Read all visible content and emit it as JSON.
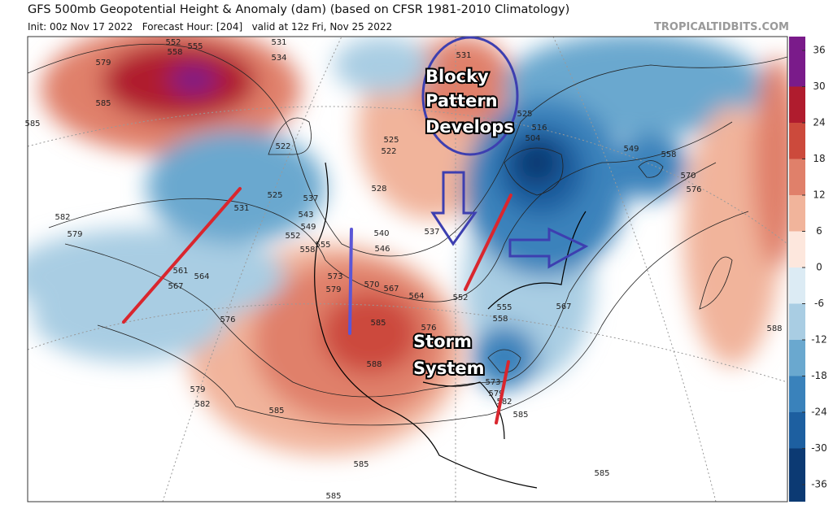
{
  "header": {
    "title": "GFS 500mb Geopotential Height & Anomaly (dam) (based on CFSR 1981-2010 Climatology)",
    "subtitle": "Init: 00z Nov 17 2022   Forecast Hour: [204]   valid at 12z Fri, Nov 25 2022",
    "watermark": "TROPICALTIDBITS.COM"
  },
  "annotations": [
    [
      "Blocky",
      "Pattern",
      "Develops"
    ],
    [
      "Storm",
      "System"
    ]
  ],
  "colorbar": {
    "ticks": [
      36,
      30,
      24,
      18,
      12,
      6,
      0,
      -6,
      -12,
      -18,
      -24,
      -30,
      -36
    ],
    "colors": [
      "#7a1b8a",
      "#b01c2e",
      "#cc4a3c",
      "#e0806a",
      "#f1b49b",
      "#fde7dd",
      "#dcebf4",
      "#a9cde3",
      "#6aa8cf",
      "#3a82bb",
      "#1d5fa0",
      "#0c3a73"
    ]
  },
  "contour_labels": [
    552,
    555,
    558,
    579,
    585,
    585,
    531,
    534,
    522,
    525,
    531,
    537,
    543,
    549,
    552,
    558,
    555,
    582,
    579,
    561,
    564,
    567,
    576,
    579,
    582,
    585,
    585,
    585,
    585,
    585,
    588,
    540,
    546,
    537,
    528,
    522,
    525,
    531,
    516,
    504,
    549,
    558,
    570,
    576,
    588,
    585,
    573,
    579,
    570,
    567,
    564,
    576,
    552,
    567,
    573,
    579,
    582,
    558,
    555,
    525
  ]
}
